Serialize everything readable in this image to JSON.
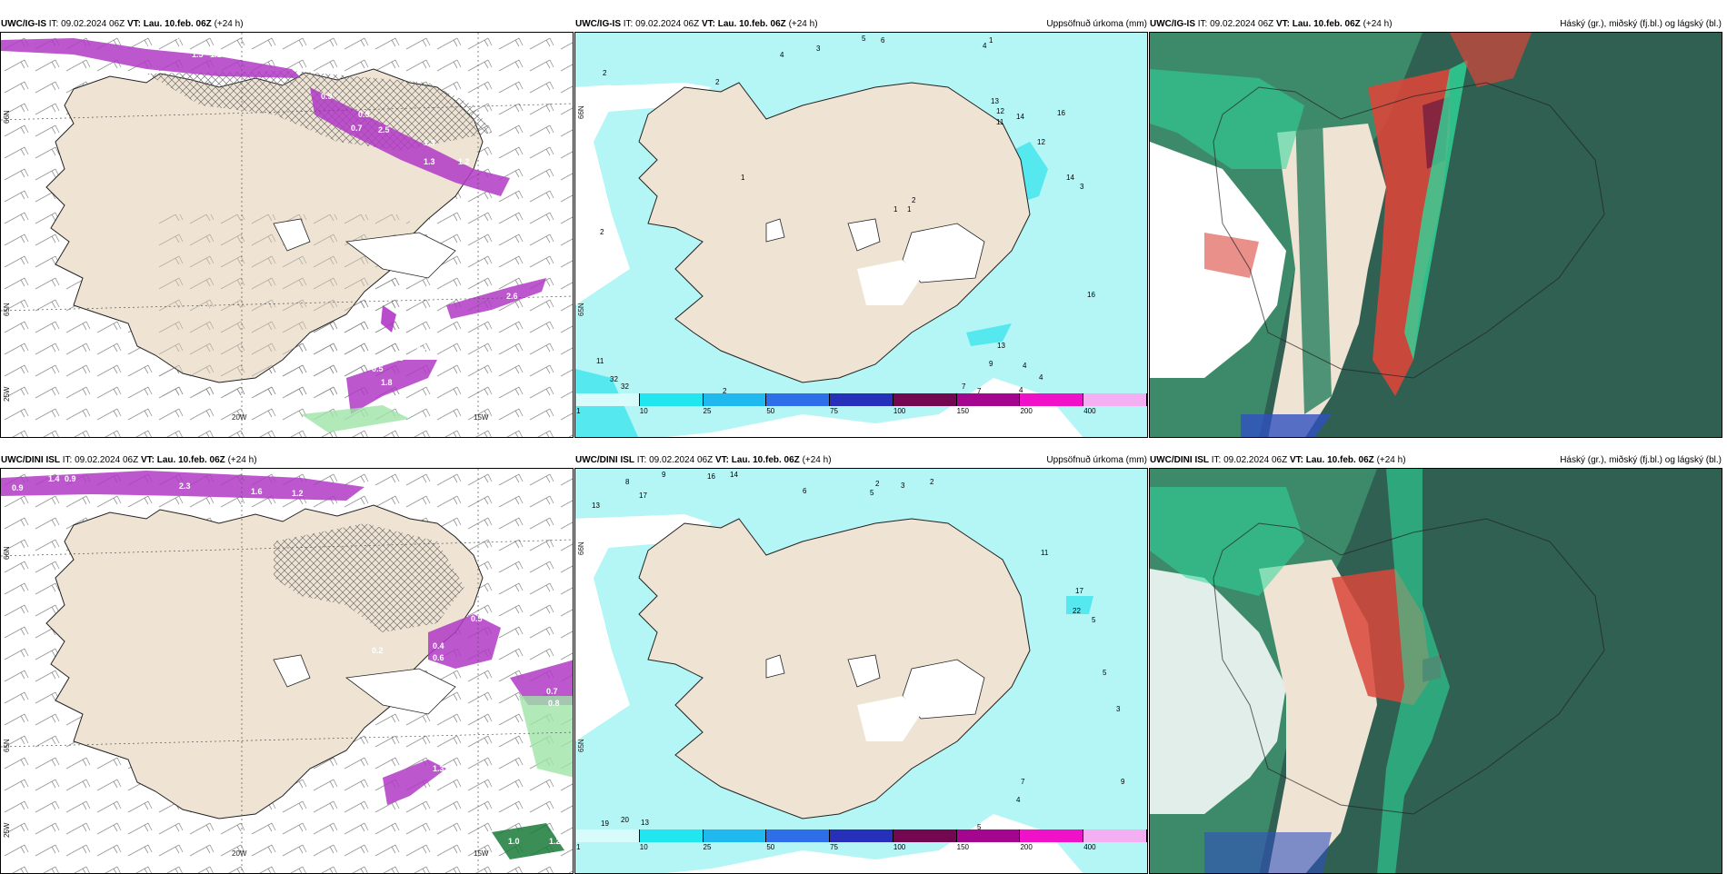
{
  "top": {
    "left": {
      "model": "UWC/IG-IS",
      "it_label": "IT:",
      "it_value": "09.02.2024 06Z",
      "vt_label": "VT:",
      "vt_value": "Lau. 10.feb. 06Z",
      "lead": "(+24 h)",
      "lon_labels": [
        "20W",
        "15W"
      ],
      "lat_labels": [
        "66N",
        "65N",
        "25W"
      ],
      "values": [
        "0.3",
        "1.0",
        "1.5",
        "1.1",
        "0.9",
        "0.5",
        "1.3",
        "0.7",
        "2.5",
        "1.3",
        "1.2",
        "2.6",
        "4.1",
        "3.2",
        "0.5",
        "1.8"
      ]
    },
    "middle": {
      "model": "UWC/IG-IS",
      "it_label": "IT:",
      "it_value": "09.02.2024 06Z",
      "vt_label": "VT:",
      "vt_value": "Lau. 10.feb. 06Z",
      "lead": "(+24 h)",
      "title": "Uppsöfnuð úrkoma (mm)",
      "lat_labels": [
        "66N",
        "65N"
      ],
      "values": [
        "5",
        "6",
        "4",
        "1",
        "3",
        "4",
        "2",
        "2",
        "13",
        "12",
        "14",
        "16",
        "11",
        "12",
        "14",
        "3",
        "2",
        "1",
        "1",
        "1",
        "2",
        "16",
        "13",
        "11",
        "32",
        "32",
        "2",
        "7",
        "7",
        "9",
        "4",
        "4",
        "4"
      ]
    },
    "right": {
      "model": "UWC/IG-IS",
      "it_label": "IT:",
      "it_value": "09.02.2024 06Z",
      "vt_label": "VT:",
      "vt_value": "Lau. 10.feb. 06Z",
      "lead": "(+24 h)",
      "title": "Háský (gr.), miðský (fj.bl.) og lágský (bl.)"
    }
  },
  "bottom": {
    "left": {
      "model": "UWC/DINI ISL",
      "it_label": "IT:",
      "it_value": "09.02.2024 06Z",
      "vt_label": "VT:",
      "vt_value": "Lau. 10.feb. 06Z",
      "lead": "(+24 h)",
      "lon_labels": [
        "20W",
        "15W"
      ],
      "lat_labels": [
        "66N",
        "65N",
        "25W"
      ],
      "values": [
        "0.9",
        "1.4",
        "0.9",
        "2.3",
        "1.6",
        "1.2",
        "0.4",
        "0.6",
        "0.5",
        "0.2",
        "0.7",
        "0.8",
        "1.3",
        "1.2",
        "1.0"
      ]
    },
    "middle": {
      "model": "UWC/DINI ISL",
      "it_label": "IT:",
      "it_value": "09.02.2024 06Z",
      "vt_label": "VT:",
      "vt_value": "Lau. 10.feb. 06Z",
      "lead": "(+24 h)",
      "title": "Uppsöfnuð úrkoma (mm)",
      "lat_labels": [
        "66N",
        "65N"
      ],
      "values": [
        "9",
        "8",
        "16",
        "14",
        "17",
        "13",
        "6",
        "5",
        "2",
        "3",
        "2",
        "11",
        "17",
        "22",
        "5",
        "5",
        "3",
        "7",
        "4",
        "9",
        "19",
        "20",
        "13",
        "5"
      ]
    },
    "right": {
      "model": "UWC/DINI ISL",
      "it_label": "IT:",
      "it_value": "09.02.2024 06Z",
      "vt_label": "VT:",
      "vt_value": "Lau. 10.feb. 06Z",
      "lead": "(+24 h)",
      "title": "Háský (gr.), miðský (fj.bl.) og lágský (bl.)"
    }
  },
  "colorbar": {
    "ticks": [
      "1",
      "10",
      "25",
      "50",
      "75",
      "100",
      "150",
      "200",
      "400"
    ],
    "colors": [
      "#d8fbfb",
      "#22e6ef",
      "#1fb9f0",
      "#2f6ee9",
      "#2630b8",
      "#740850",
      "#a4068f",
      "#f012c8",
      "#f4aef2"
    ]
  },
  "colors": {
    "land": "#efe3d3",
    "sea": "#ffffff",
    "light_cyan": "#b4f5f6",
    "cyan": "#2ee3ec",
    "precip_purple": "#b039c6",
    "cloud_dark": "#2f6052",
    "cloud_mid": "#3c8a6a",
    "cloud_green": "#2fd79a",
    "cloud_red": "#d9463a"
  }
}
